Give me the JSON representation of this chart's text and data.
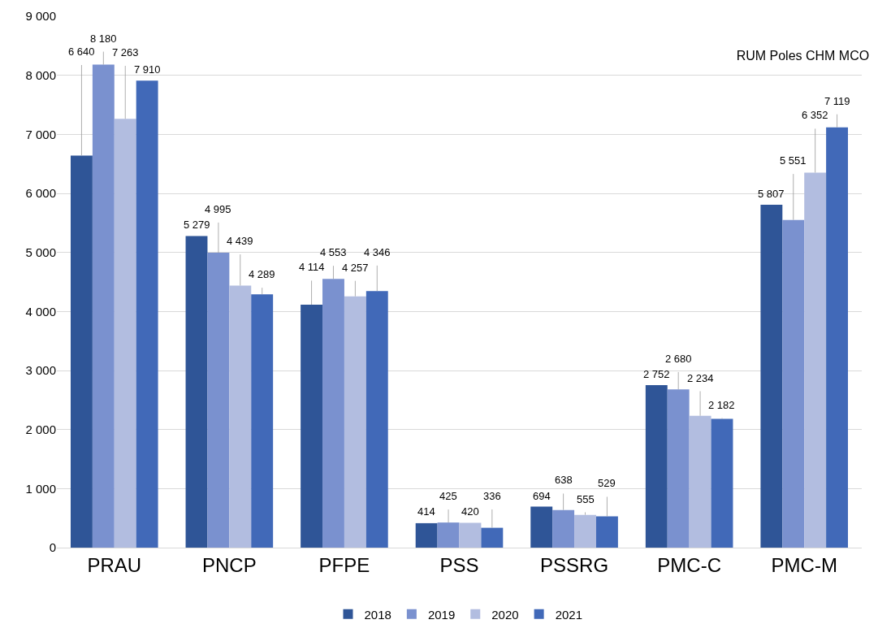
{
  "chart_data": {
    "type": "bar",
    "title": "RUM Poles CHM MCO",
    "categories": [
      "PRAU",
      "PNCP",
      "PFPE",
      "PSS",
      "PSSRG",
      "PMC-C",
      "PMC-M"
    ],
    "series": [
      {
        "name": "2018",
        "color": "#2f5597",
        "values": [
          6640,
          5279,
          4114,
          414,
          694,
          2752,
          5807
        ],
        "value_labels": [
          "6 640",
          "5 279",
          "4 114",
          "414",
          "694",
          "2 752",
          "5 807"
        ]
      },
      {
        "name": "2019",
        "color": "#7a91cf",
        "values": [
          8180,
          4995,
          4553,
          425,
          638,
          2680,
          5551
        ],
        "value_labels": [
          "8 180",
          "4 995",
          "4 553",
          "425",
          "638",
          "2 680",
          "5 551"
        ]
      },
      {
        "name": "2020",
        "color": "#b2bde0",
        "values": [
          7263,
          4439,
          4257,
          420,
          555,
          2234,
          6352
        ],
        "value_labels": [
          "7 263",
          "4 439",
          "4 257",
          "420",
          "555",
          "2 234",
          "6 352"
        ]
      },
      {
        "name": "2021",
        "color": "#4169b8",
        "values": [
          7910,
          4289,
          4346,
          336,
          529,
          2182,
          7119
        ],
        "value_labels": [
          "7 910",
          "4 289",
          "4 346",
          "336",
          "529",
          "2 182",
          "7 119"
        ]
      }
    ],
    "ylim": [
      0,
      9000
    ],
    "yticks": [
      0,
      {
        "value": 1000,
        "label": "1 000"
      },
      {
        "value": 2000,
        "label": "2 000"
      },
      {
        "value": 3000,
        "label": "3 000"
      },
      {
        "value": 4000,
        "label": "4 000"
      },
      {
        "value": 5000,
        "label": "5 000"
      },
      {
        "value": 6000,
        "label": "6 000"
      },
      {
        "value": 7000,
        "label": "7 000"
      },
      {
        "value": 8000,
        "label": "8 000"
      },
      {
        "value": 9000,
        "label": "9 000"
      }
    ],
    "grid": "y",
    "legend": "bottom"
  }
}
